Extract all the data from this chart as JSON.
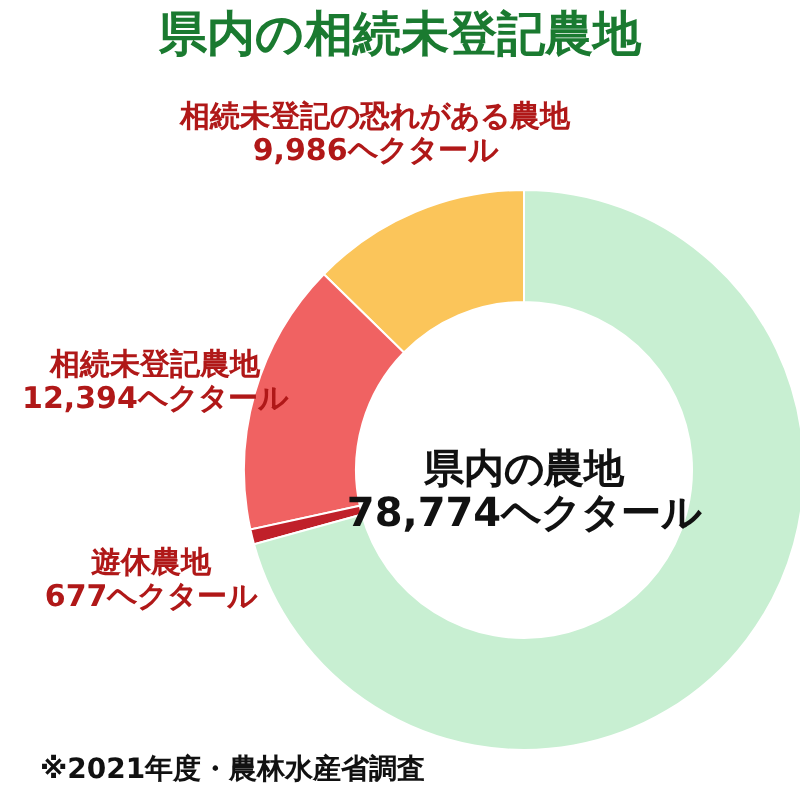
{
  "chart_data": {
    "type": "donut",
    "title": "県内の相続未登記農地",
    "categories": [
      "相続未登記の恐れがある農地",
      "相続未登記農地",
      "遊休農地",
      null
    ],
    "values": [
      9986,
      12394,
      677,
      55717
    ],
    "colors": [
      "#fbc55a",
      "#f06262",
      "#c0202a",
      "#c8efd2"
    ],
    "value_labels": [
      "9,986ヘクタール",
      "12,394ヘクタール",
      "677ヘクタール",
      null
    ],
    "legend": false,
    "annotations": [
      "県内の農地\n78,774ヘクタール",
      "※2021年度・農林水産省調査"
    ]
  }
}
